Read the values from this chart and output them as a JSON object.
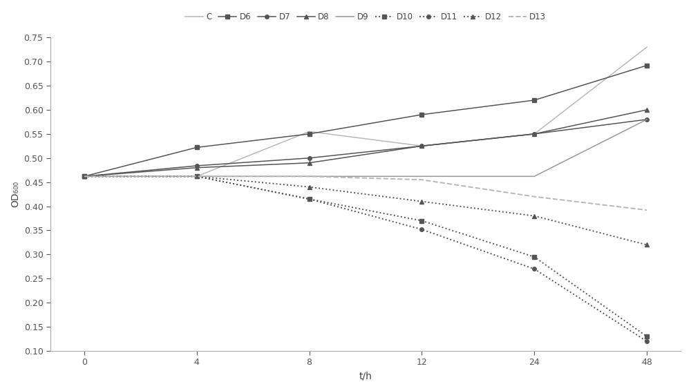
{
  "x_positions": [
    0,
    1,
    2,
    3,
    4,
    5
  ],
  "x_labels": [
    "0",
    "4",
    "8",
    "12",
    "24",
    "48"
  ],
  "series": [
    {
      "name": "C",
      "y": [
        0.462,
        0.462,
        0.555,
        0.525,
        0.55,
        0.73
      ],
      "color": "#b8b8b8",
      "marker": null,
      "linestyle": "solid",
      "linewidth": 1.1
    },
    {
      "name": "D6",
      "y": [
        0.462,
        0.522,
        0.55,
        0.59,
        0.62,
        0.692
      ],
      "color": "#555555",
      "marker": "s",
      "linestyle": "solid",
      "linewidth": 1.1
    },
    {
      "name": "D7",
      "y": [
        0.462,
        0.484,
        0.5,
        0.525,
        0.55,
        0.58
      ],
      "color": "#555555",
      "marker": "o",
      "linestyle": "solid",
      "linewidth": 1.1
    },
    {
      "name": "D8",
      "y": [
        0.462,
        0.48,
        0.49,
        0.525,
        0.55,
        0.6
      ],
      "color": "#555555",
      "marker": "^",
      "linestyle": "solid",
      "linewidth": 1.1
    },
    {
      "name": "D9",
      "y": [
        0.462,
        0.462,
        0.462,
        0.462,
        0.462,
        0.58
      ],
      "color": "#999999",
      "marker": null,
      "linestyle": "solid",
      "linewidth": 1.1
    },
    {
      "name": "D10",
      "y": [
        0.462,
        0.462,
        0.415,
        0.37,
        0.295,
        0.13
      ],
      "color": "#555555",
      "marker": "s",
      "linestyle": "dotted",
      "linewidth": 1.4
    },
    {
      "name": "D11",
      "y": [
        0.462,
        0.462,
        0.415,
        0.352,
        0.27,
        0.12
      ],
      "color": "#555555",
      "marker": "o",
      "linestyle": "dotted",
      "linewidth": 1.4
    },
    {
      "name": "D12",
      "y": [
        0.462,
        0.462,
        0.44,
        0.41,
        0.38,
        0.32
      ],
      "color": "#555555",
      "marker": "^",
      "linestyle": "dotted",
      "linewidth": 1.4
    },
    {
      "name": "D13",
      "y": [
        0.462,
        0.462,
        0.462,
        0.455,
        0.42,
        0.392
      ],
      "color": "#b8b8b8",
      "marker": null,
      "linestyle": "dashed",
      "linewidth": 1.4
    }
  ],
  "xlabel": "t/h",
  "ylabel": "OD₆₀₀",
  "ylim": [
    0.1,
    0.75
  ],
  "background_color": "#ffffff",
  "axis_fontsize": 10,
  "legend_fontsize": 8.5,
  "markersize": 4,
  "tick_labelsize": 9
}
